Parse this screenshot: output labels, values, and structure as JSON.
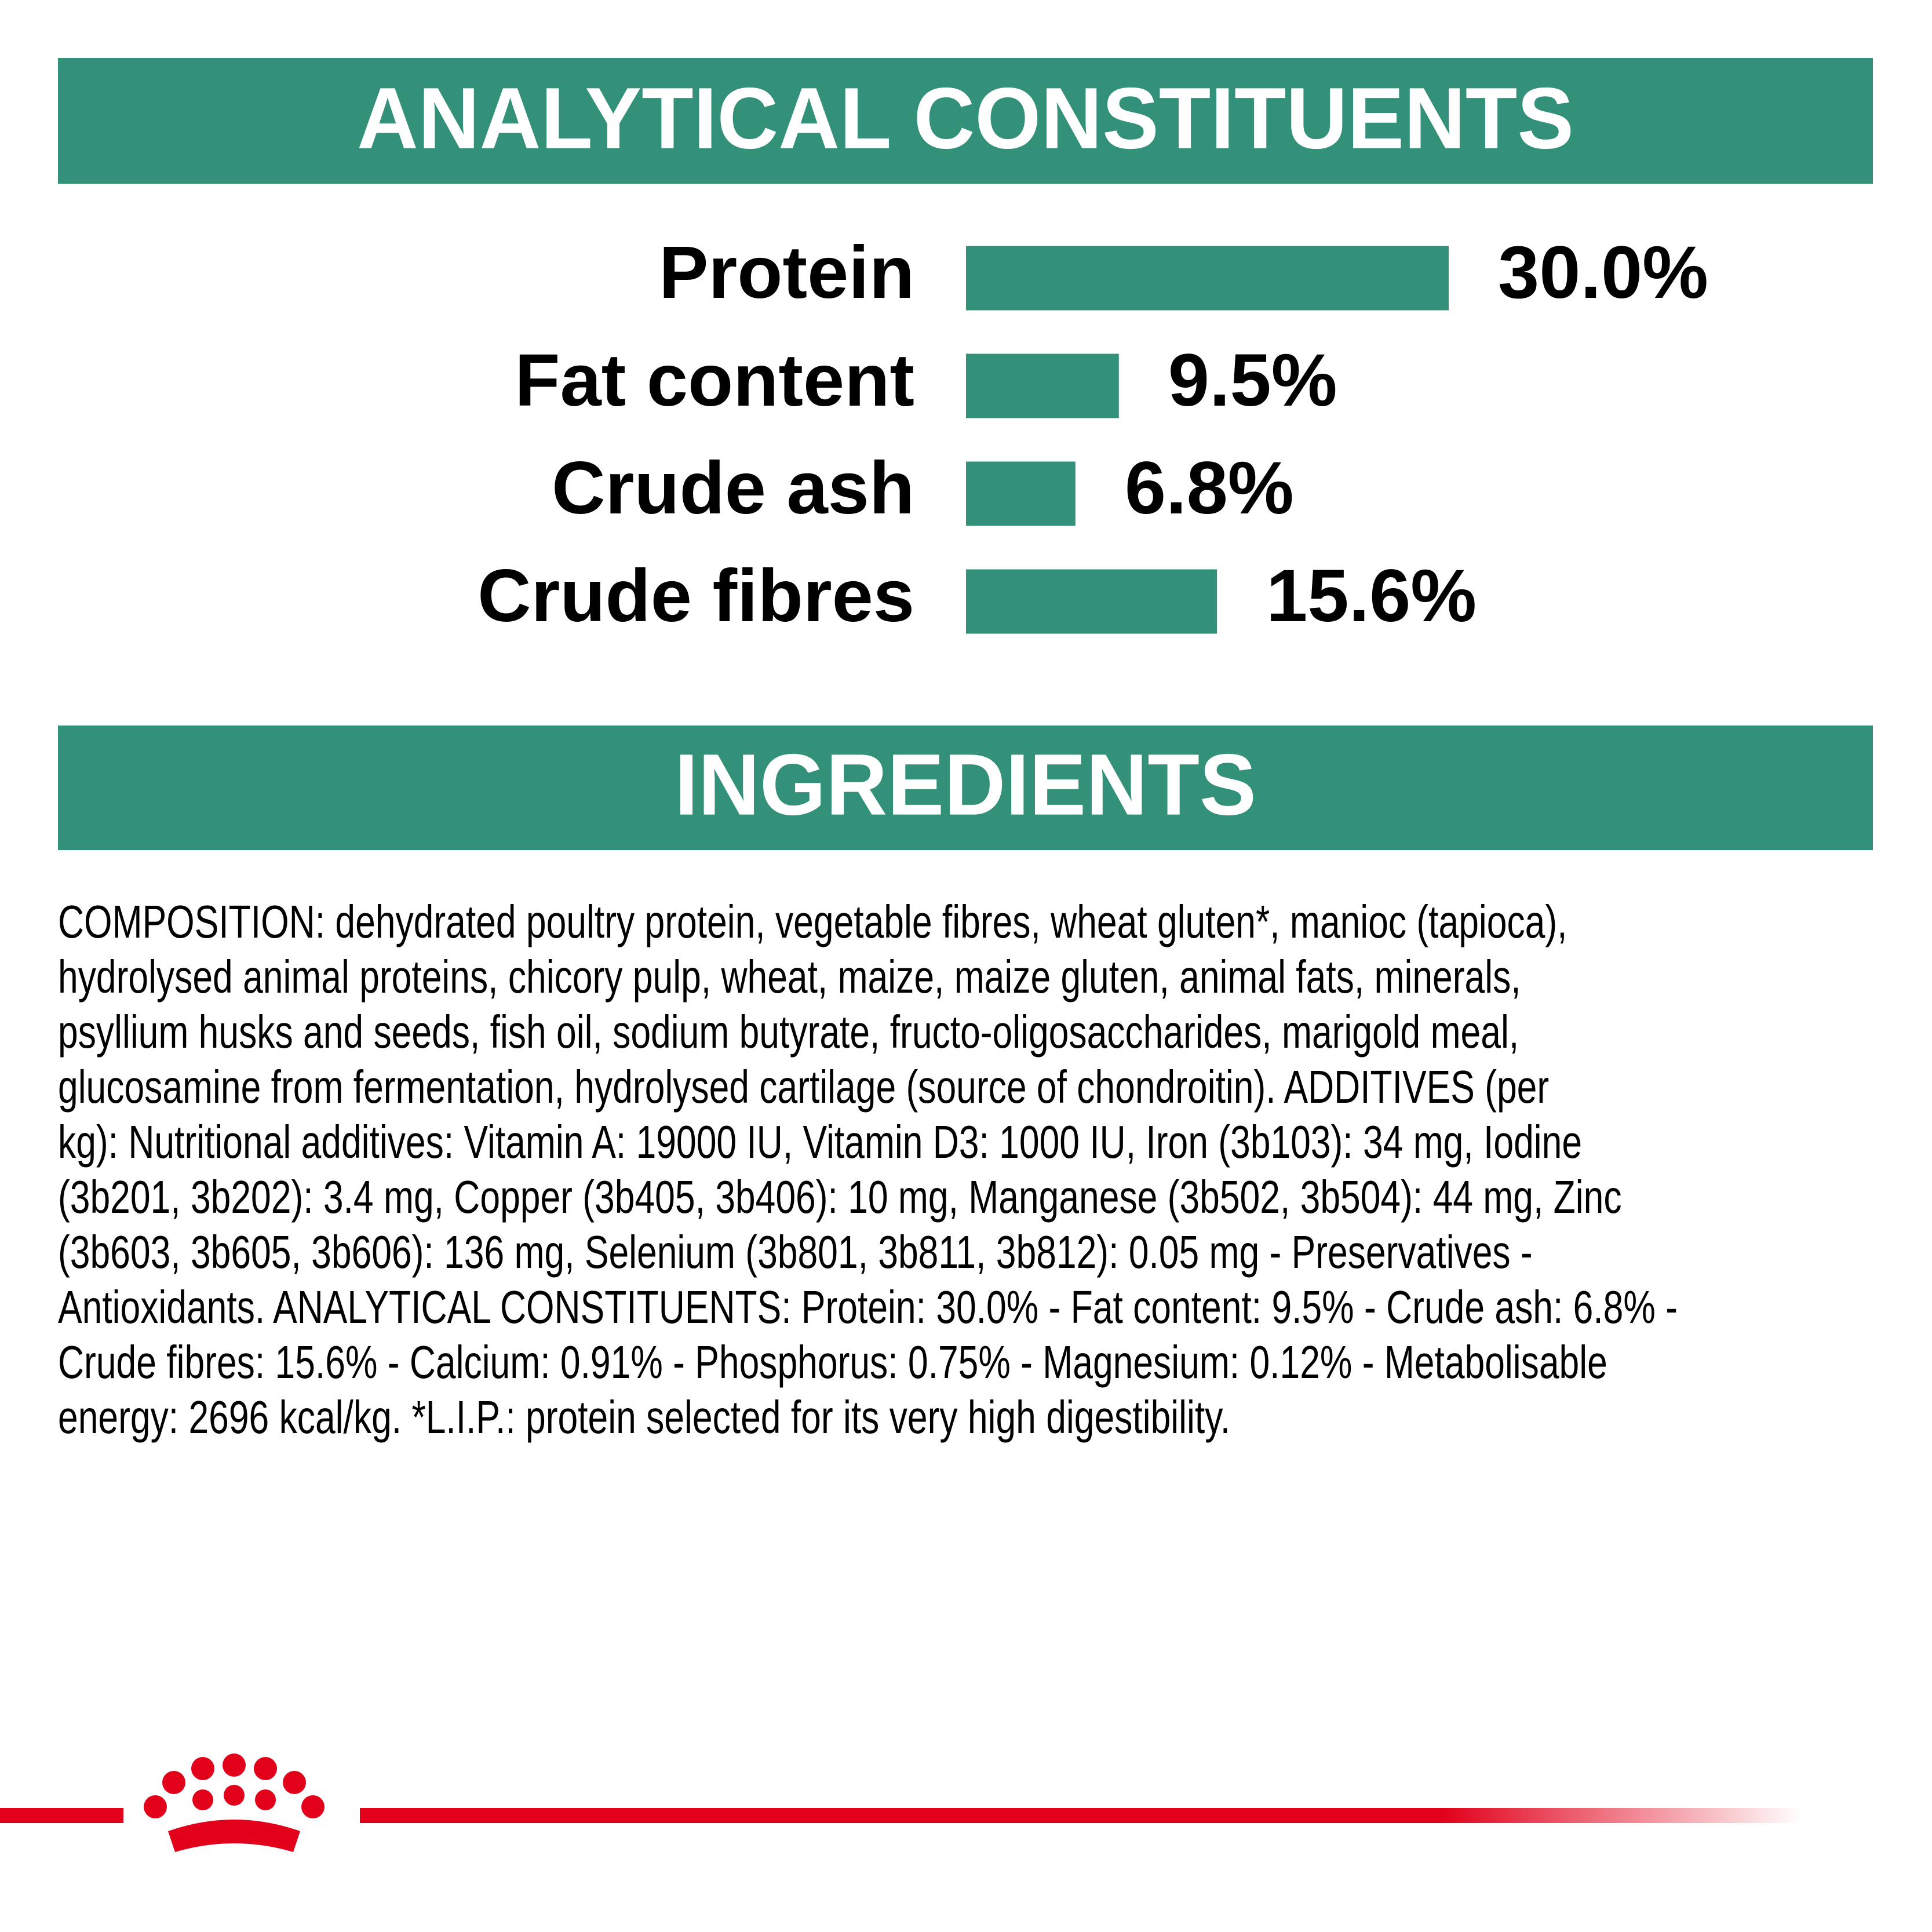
{
  "chart_data": {
    "type": "bar",
    "orientation": "horizontal",
    "title": "ANALYTICAL CONSTITUENTS",
    "categories": [
      "Protein",
      "Fat content",
      "Crude ash",
      "Crude fibres"
    ],
    "values": [
      30.0,
      9.5,
      6.8,
      15.6
    ],
    "value_labels": [
      "30.0%",
      "9.5%",
      "6.8%",
      "15.6%"
    ],
    "color": "#33917a"
  },
  "ingredients": {
    "title": "INGREDIENTS",
    "lines": [
      "COMPOSITION: dehydrated poultry protein, vegetable fibres, wheat gluten*, manioc (tapioca),",
      "hydrolysed animal proteins, chicory pulp, wheat, maize, maize gluten, animal fats, minerals,",
      "psyllium husks and seeds, fish oil, sodium butyrate, fructo-oligosaccharides, marigold meal,",
      "glucosamine from fermentation, hydrolysed cartilage (source of chondroitin). ADDITIVES (per",
      "kg): Nutritional additives: Vitamin A: 19000 IU, Vitamin D3: 1000 IU, Iron (3b103): 34 mg, Iodine",
      "(3b201, 3b202): 3.4 mg, Copper (3b405, 3b406): 10 mg, Manganese (3b502, 3b504): 44 mg, Zinc",
      "(3b603, 3b605, 3b606): 136 mg, Selenium (3b801, 3b811, 3b812): 0.05 mg - Preservatives -",
      "Antioxidants. ANALYTICAL CONSTITUENTS: Protein: 30.0% - Fat content: 9.5% - Crude ash: 6.8% -",
      "Crude fibres: 15.6% - Calcium: 0.91% - Phosphorus: 0.75% - Magnesium: 0.12% - Metabolisable",
      "energy: 2696 kcal/kg. *L.I.P.: protein selected for its very high digestibility."
    ]
  }
}
